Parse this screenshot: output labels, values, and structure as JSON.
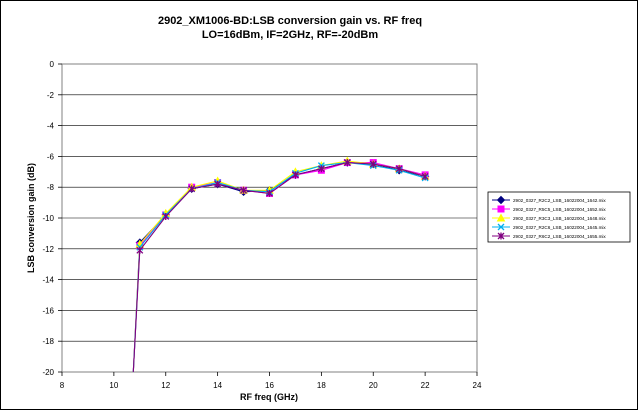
{
  "chart_data": {
    "type": "line",
    "title_line1": "2902_XM1006-BD:LSB conversion gain vs. RF freq",
    "title_line2": "LO=16dBm, IF=2GHz, RF=-20dBm",
    "xlabel": "RF freq (GHz)",
    "ylabel": "LSB conversion gain (dB)",
    "xlim": [
      8,
      24
    ],
    "ylim": [
      -20,
      0
    ],
    "x_ticks": [
      "8",
      "10",
      "12",
      "14",
      "16",
      "18",
      "20",
      "22",
      "24"
    ],
    "y_ticks": [
      "0",
      "-2",
      "-4",
      "-6",
      "-8",
      "-10",
      "-12",
      "-14",
      "-16",
      "-18",
      "-20"
    ],
    "grid": "horizontal",
    "legend_position": "right",
    "series": [
      {
        "name": "2902_0327_R2C2_LSB_16022004_1642.mix",
        "color": "#000080",
        "marker": "diamond",
        "x": [
          10.75,
          11,
          12,
          13,
          14,
          15,
          16,
          17,
          18,
          19,
          20,
          21,
          22
        ],
        "y": [
          -20,
          -11.6,
          -9.8,
          -8.1,
          -7.8,
          -8.3,
          -8.2,
          -7.2,
          -6.8,
          -6.4,
          -6.5,
          -6.9,
          -7.3
        ]
      },
      {
        "name": "2902_0327_R5C5_LSB_16022004_1652.mix",
        "color": "#ff00ff",
        "marker": "square",
        "x": [
          10.75,
          11,
          12,
          13,
          14,
          15,
          16,
          17,
          18,
          19,
          20,
          21,
          22
        ],
        "y": [
          -20,
          -11.8,
          -9.8,
          -8.0,
          -7.7,
          -8.2,
          -8.4,
          -7.2,
          -6.9,
          -6.4,
          -6.4,
          -6.8,
          -7.2
        ]
      },
      {
        "name": "2902_0327_R3C3_LSB_16022004_1648.mix",
        "color": "#ffff00",
        "marker": "triangle",
        "x": [
          10.75,
          11,
          12,
          13,
          14,
          15,
          16,
          17,
          18,
          19,
          20,
          21,
          22
        ],
        "y": [
          -20,
          -11.7,
          -9.7,
          -8.0,
          -7.6,
          -8.2,
          -8.2,
          -7.0,
          -6.6,
          -6.3,
          -6.5,
          -6.8,
          -7.3
        ]
      },
      {
        "name": "2902_0327_R2C6_LSB_16022004_1645.mix",
        "color": "#00b0f0",
        "marker": "x",
        "x": [
          10.75,
          11,
          12,
          13,
          14,
          15,
          16,
          17,
          18,
          19,
          20,
          21,
          22
        ],
        "y": [
          -20,
          -11.9,
          -9.8,
          -8.1,
          -7.7,
          -8.2,
          -8.3,
          -7.1,
          -6.6,
          -6.4,
          -6.6,
          -6.9,
          -7.4
        ]
      },
      {
        "name": "2902_0327_R6C2_LSB_16022004_1655.mix",
        "color": "#800080",
        "marker": "star",
        "x": [
          10.75,
          11,
          12,
          13,
          14,
          15,
          16,
          17,
          18,
          19,
          20,
          21,
          22
        ],
        "y": [
          -20,
          -12.1,
          -9.9,
          -8.1,
          -7.8,
          -8.2,
          -8.4,
          -7.2,
          -6.8,
          -6.4,
          -6.5,
          -6.8,
          -7.3
        ]
      }
    ]
  }
}
